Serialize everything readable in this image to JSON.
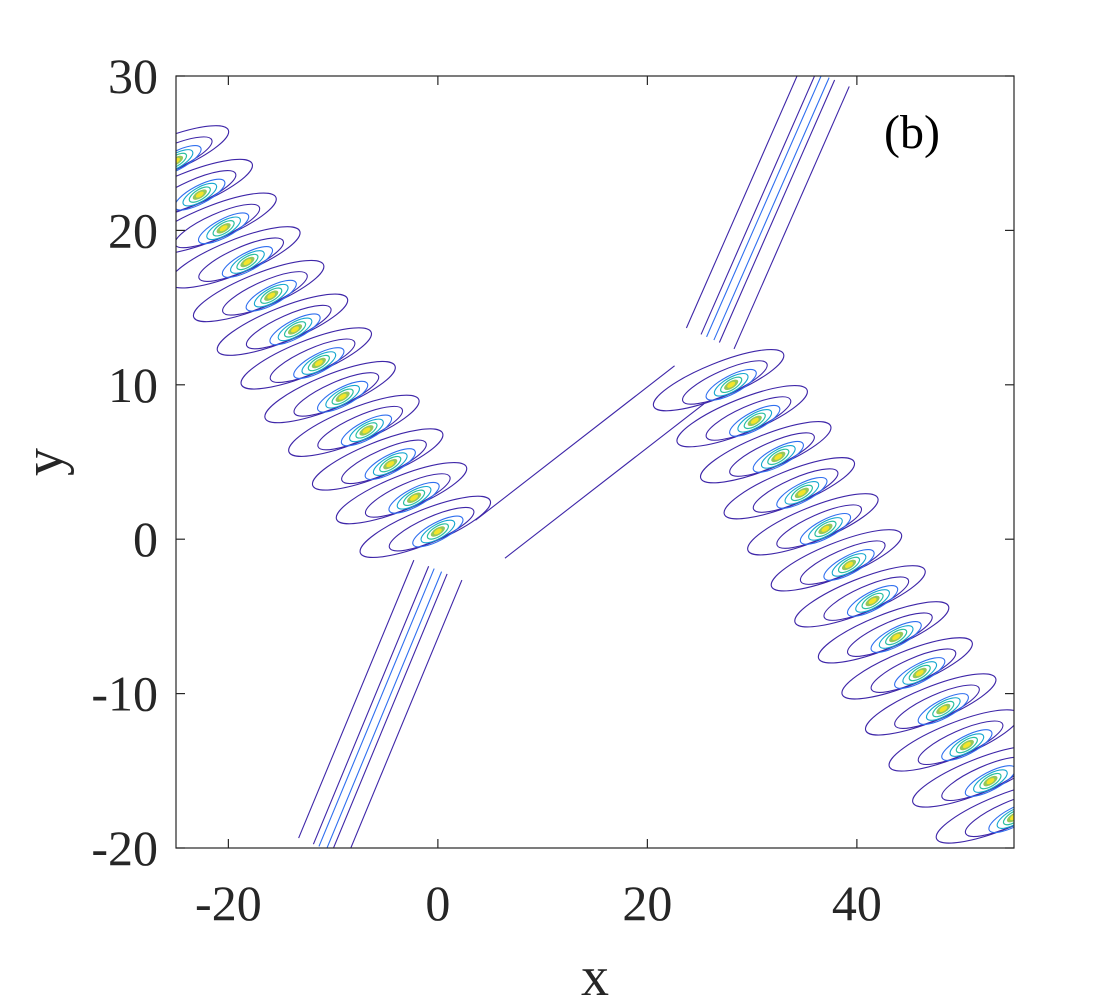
{
  "chart_data": {
    "type": "contour",
    "title": "",
    "panel_label": "(b)",
    "xlabel": "x",
    "ylabel": "y",
    "xlim": [
      -25,
      55
    ],
    "ylim": [
      -20,
      30
    ],
    "x_ticks": [
      -20,
      0,
      20,
      40
    ],
    "y_ticks": [
      -20,
      -10,
      0,
      10,
      20,
      30
    ],
    "x_tick_labels": [
      "-20",
      "0",
      "20",
      "40"
    ],
    "y_tick_labels": [
      "-20",
      "-10",
      "0",
      "10",
      "20",
      "30"
    ],
    "grid": false,
    "colormap": [
      "#3e26a8",
      "#2f6fef",
      "#14a6cf",
      "#2cc0a0",
      "#96c85a",
      "#f5e52a"
    ],
    "features": [
      {
        "name": "upper-left breather chain",
        "from": [
          -25,
          24.5
        ],
        "to": [
          0,
          0.5
        ],
        "peaks": 12
      },
      {
        "name": "lower-right breather chain",
        "from": [
          28,
          10
        ],
        "to": [
          55,
          -18
        ],
        "peaks": 13
      },
      {
        "name": "upper line soliton",
        "from": [
          26,
          13
        ],
        "to": [
          37,
          30
        ]
      },
      {
        "name": "lower line soliton",
        "from": [
          0,
          -2
        ],
        "to": [
          -11,
          -20
        ]
      },
      {
        "name": "connecting line soliton",
        "from": [
          5,
          0
        ],
        "to": [
          24,
          10
        ]
      }
    ]
  }
}
